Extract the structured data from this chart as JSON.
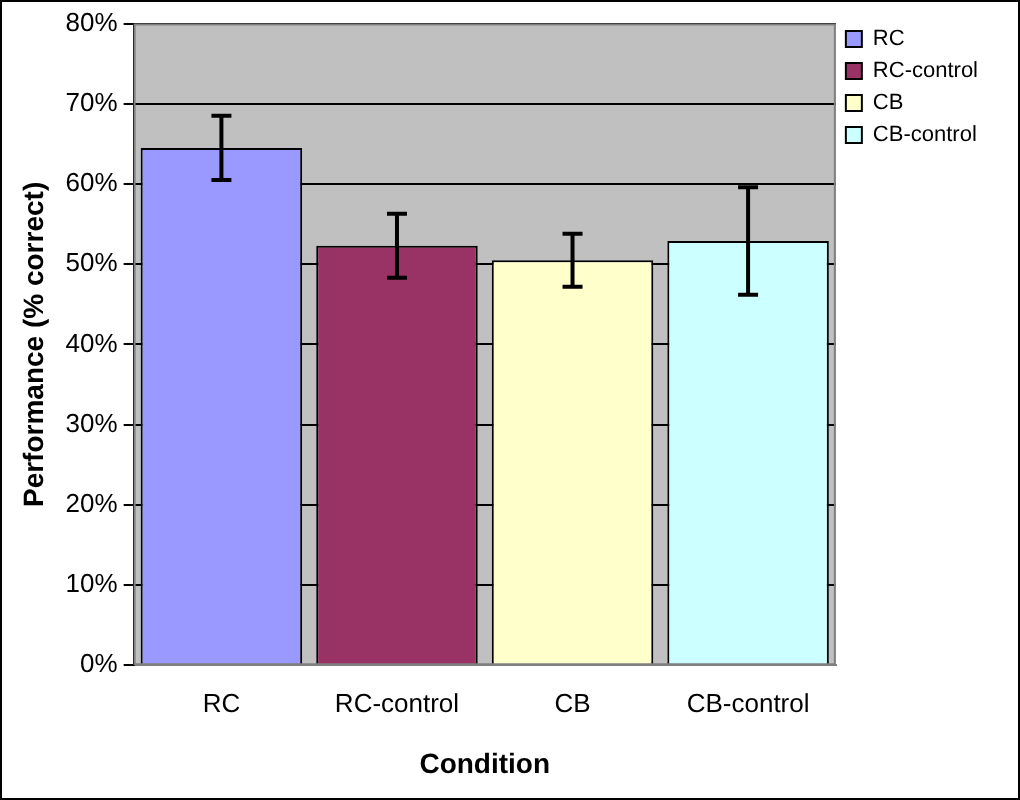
{
  "chart_data": {
    "type": "bar",
    "xlabel": "Condition",
    "ylabel": "Performance (% correct)",
    "categories": [
      "RC",
      "RC-control",
      "CB",
      "CB-control"
    ],
    "series": [
      {
        "name": "RC",
        "color": "#9999ff",
        "values": [
          64.5,
          null,
          null,
          null
        ],
        "errors": [
          4,
          null,
          null,
          null
        ]
      },
      {
        "name": "RC-control",
        "color": "#993366",
        "values": [
          null,
          52.3,
          null,
          null
        ],
        "errors": [
          null,
          4,
          null,
          null
        ]
      },
      {
        "name": "CB",
        "color": "#ffffcc",
        "values": [
          null,
          null,
          50.5,
          null
        ],
        "errors": [
          null,
          null,
          3.3,
          null
        ]
      },
      {
        "name": "CB-control",
        "color": "#ccffff",
        "values": [
          null,
          null,
          null,
          52.9
        ],
        "errors": [
          null,
          null,
          null,
          6.7
        ]
      }
    ],
    "ylim": [
      0,
      80
    ],
    "yticks": [
      {
        "value": 0,
        "label": "0%"
      },
      {
        "value": 10,
        "label": "10%"
      },
      {
        "value": 20,
        "label": "20%"
      },
      {
        "value": 30,
        "label": "30%"
      },
      {
        "value": 40,
        "label": "40%"
      },
      {
        "value": 50,
        "label": "50%"
      },
      {
        "value": 60,
        "label": "60%"
      },
      {
        "value": 70,
        "label": "70%"
      },
      {
        "value": 80,
        "label": "80%"
      }
    ],
    "grid": "y",
    "legend": "top right"
  }
}
